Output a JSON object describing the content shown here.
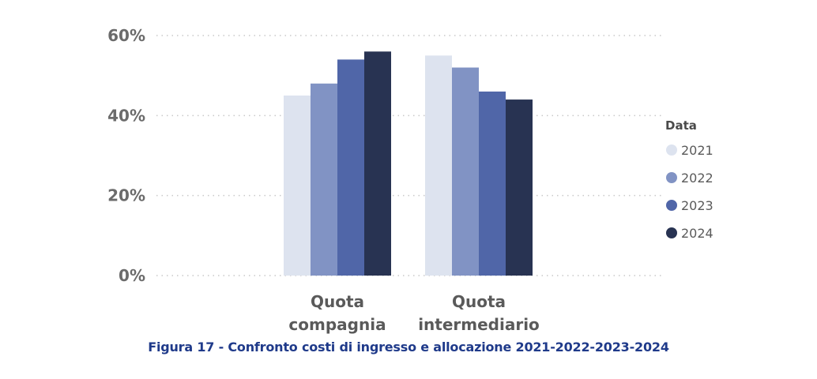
{
  "chart_data": {
    "type": "bar",
    "categories": [
      [
        "Quota",
        "compagnia"
      ],
      [
        "Quota",
        "intermediario"
      ]
    ],
    "series": [
      {
        "name": "2021",
        "values": [
          45,
          55
        ],
        "color": "#dde3ef"
      },
      {
        "name": "2022",
        "values": [
          48,
          52
        ],
        "color": "#8193c4"
      },
      {
        "name": "2023",
        "values": [
          54,
          46
        ],
        "color": "#5066a8"
      },
      {
        "name": "2024",
        "values": [
          56,
          44
        ],
        "color": "#283352"
      }
    ],
    "yticks": [
      "0%",
      "20%",
      "40%",
      "60%"
    ],
    "ytick_values": [
      0,
      20,
      40,
      60
    ],
    "ylim": [
      0,
      60
    ],
    "grid": true,
    "legend": {
      "title": "Data",
      "placement": "right"
    }
  },
  "caption": "Figura 17 - Confronto costi di ingresso e allocazione 2021-2022-2023-2024"
}
